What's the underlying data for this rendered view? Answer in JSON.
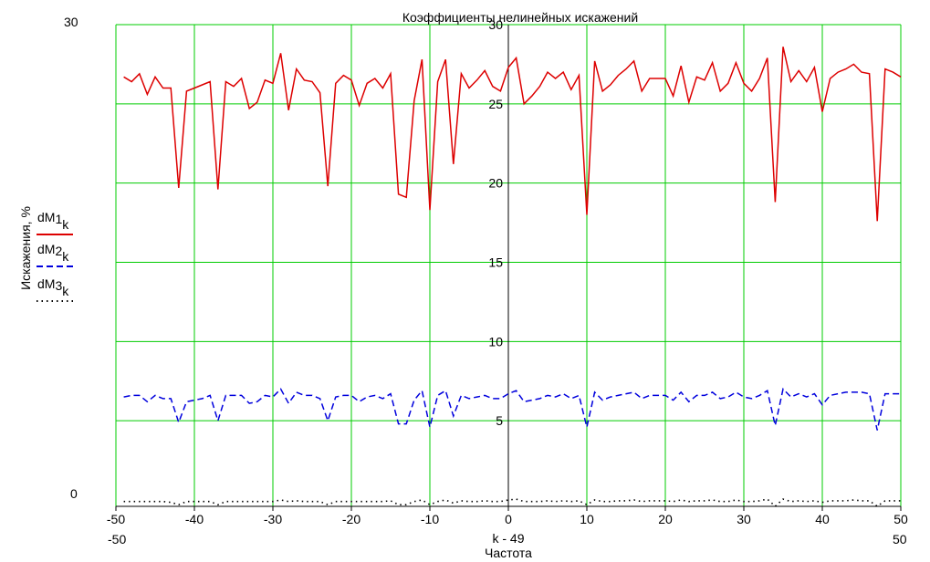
{
  "chart_data": {
    "type": "line",
    "title": "Коэффициенты нелинейных искажений",
    "xlabel": "Частота",
    "xlabel_expr": "k - 49",
    "ylabel": "Искажения, %",
    "xlim": [
      -50,
      50
    ],
    "ylim": [
      0,
      30
    ],
    "grid": true,
    "grid_color": "#00cc00",
    "x_ticks": [
      "-50",
      "-40",
      "-30",
      "-20",
      "-10",
      "0",
      "10",
      "20",
      "30",
      "40",
      "50"
    ],
    "x_range_labels": {
      "min": "-50",
      "max": "50"
    },
    "y_ticks_center": [
      "5",
      "10",
      "15",
      "20",
      "25",
      "30"
    ],
    "y_range_labels": {
      "min": "0",
      "max": "30"
    },
    "legend": {
      "placement": "left",
      "entries": [
        {
          "base": "dM",
          "sub": "1",
          "idx": "k",
          "color": "#dd0000",
          "style": "solid"
        },
        {
          "base": "dM",
          "sub": "2",
          "idx": "k",
          "color": "#0000dd",
          "style": "dashed"
        },
        {
          "base": "dM",
          "sub": "3",
          "idx": "k",
          "color": "#000000",
          "style": "dotted"
        }
      ]
    },
    "x": [
      -49,
      -48,
      -47,
      -46,
      -45,
      -44,
      -43,
      -42,
      -41,
      -40,
      -39,
      -38,
      -37,
      -36,
      -35,
      -34,
      -33,
      -32,
      -31,
      -30,
      -29,
      -28,
      -27,
      -26,
      -25,
      -24,
      -23,
      -22,
      -21,
      -20,
      -19,
      -18,
      -17,
      -16,
      -15,
      -14,
      -13,
      -12,
      -11,
      -10,
      -9,
      -8,
      -7,
      -6,
      -5,
      -4,
      -3,
      -2,
      -1,
      0,
      1,
      2,
      3,
      4,
      5,
      6,
      7,
      8,
      9,
      10,
      11,
      12,
      13,
      14,
      15,
      16,
      17,
      18,
      19,
      20,
      21,
      22,
      23,
      24,
      25,
      26,
      27,
      28,
      29,
      30,
      31,
      32,
      33,
      34,
      35,
      36,
      37,
      38,
      39,
      40,
      41,
      42,
      43,
      44,
      45,
      46,
      47,
      48,
      49,
      50
    ],
    "series": [
      {
        "name": "dM1_k",
        "color": "#dd0000",
        "style": "solid",
        "values": [
          26.7,
          26.4,
          26.9,
          25.6,
          26.7,
          26.0,
          26.0,
          19.7,
          25.8,
          26.0,
          26.2,
          26.4,
          19.6,
          26.4,
          26.1,
          26.6,
          24.7,
          25.1,
          26.5,
          26.3,
          28.2,
          24.6,
          27.2,
          26.5,
          26.4,
          25.7,
          19.8,
          26.3,
          26.8,
          26.5,
          24.9,
          26.3,
          26.6,
          26.0,
          26.9,
          19.3,
          19.1,
          25.2,
          27.8,
          18.3,
          26.4,
          27.8,
          21.2,
          26.9,
          26.0,
          26.5,
          27.1,
          26.1,
          25.8,
          27.3,
          27.9,
          25.0,
          25.5,
          26.1,
          27.0,
          26.6,
          27.0,
          25.9,
          26.8,
          18.0,
          27.7,
          25.8,
          26.2,
          26.8,
          27.2,
          27.7,
          25.8,
          26.6,
          26.6,
          26.6,
          25.5,
          27.4,
          25.1,
          26.7,
          26.5,
          27.6,
          25.8,
          26.3,
          27.6,
          26.3,
          25.8,
          26.6,
          27.9,
          18.8,
          28.6,
          26.4,
          27.1,
          26.4,
          27.3,
          24.5,
          26.6,
          27.0,
          27.2,
          27.5,
          27.0,
          26.9,
          17.6,
          27.2,
          27.0,
          26.7
        ]
      },
      {
        "name": "dM2_k",
        "color": "#0000dd",
        "style": "dashed",
        "values": [
          6.5,
          6.6,
          6.6,
          6.2,
          6.6,
          6.4,
          6.4,
          4.9,
          6.2,
          6.3,
          6.4,
          6.6,
          5.0,
          6.6,
          6.6,
          6.6,
          6.1,
          6.2,
          6.6,
          6.5,
          7.0,
          6.1,
          6.8,
          6.6,
          6.6,
          6.4,
          5.0,
          6.5,
          6.6,
          6.6,
          6.2,
          6.5,
          6.6,
          6.4,
          6.7,
          4.8,
          4.8,
          6.3,
          6.9,
          4.6,
          6.6,
          6.9,
          5.3,
          6.6,
          6.4,
          6.5,
          6.6,
          6.4,
          6.4,
          6.7,
          6.9,
          6.2,
          6.3,
          6.4,
          6.6,
          6.5,
          6.7,
          6.4,
          6.6,
          4.6,
          6.8,
          6.3,
          6.5,
          6.6,
          6.7,
          6.8,
          6.4,
          6.6,
          6.6,
          6.6,
          6.3,
          6.8,
          6.2,
          6.6,
          6.6,
          6.8,
          6.4,
          6.5,
          6.8,
          6.5,
          6.4,
          6.6,
          6.9,
          4.7,
          7.0,
          6.5,
          6.7,
          6.5,
          6.7,
          6.0,
          6.6,
          6.7,
          6.8,
          6.8,
          6.8,
          6.7,
          4.4,
          6.7,
          6.7,
          6.7
        ]
      },
      {
        "name": "dM3_k",
        "color": "#000000",
        "style": "dotted",
        "values": [
          -0.1,
          -0.1,
          -0.1,
          -0.1,
          -0.1,
          -0.1,
          -0.15,
          -0.3,
          -0.1,
          -0.1,
          -0.1,
          -0.1,
          -0.3,
          -0.1,
          -0.1,
          -0.1,
          -0.1,
          -0.1,
          -0.1,
          -0.1,
          0.0,
          -0.1,
          -0.05,
          -0.1,
          -0.1,
          -0.1,
          -0.3,
          -0.1,
          -0.1,
          -0.1,
          -0.1,
          -0.1,
          -0.1,
          -0.1,
          -0.05,
          -0.3,
          -0.3,
          -0.1,
          0.0,
          -0.3,
          -0.1,
          0.0,
          -0.2,
          -0.05,
          -0.1,
          -0.1,
          -0.05,
          -0.1,
          -0.1,
          0.0,
          0.05,
          -0.1,
          -0.1,
          -0.1,
          -0.05,
          -0.1,
          -0.05,
          -0.1,
          -0.05,
          -0.3,
          0.0,
          -0.1,
          -0.1,
          -0.05,
          -0.05,
          0.0,
          -0.1,
          -0.05,
          -0.05,
          -0.05,
          -0.1,
          0.0,
          -0.1,
          -0.05,
          -0.05,
          0.0,
          -0.1,
          -0.1,
          0.0,
          -0.1,
          -0.1,
          -0.05,
          0.05,
          -0.4,
          0.05,
          -0.1,
          -0.05,
          -0.1,
          -0.05,
          -0.15,
          -0.05,
          -0.05,
          -0.05,
          0.0,
          -0.05,
          -0.05,
          -0.4,
          -0.05,
          -0.05,
          -0.05
        ]
      }
    ]
  }
}
